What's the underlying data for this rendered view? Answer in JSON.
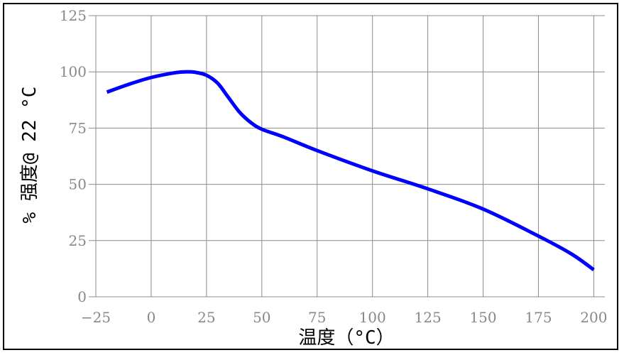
{
  "chart_data": {
    "type": "line",
    "title": "",
    "xlabel": "温度（°C）",
    "ylabel": "% 强度@ 22 °C",
    "xlim": [
      -25,
      205
    ],
    "ylim": [
      0,
      125
    ],
    "x_ticks": [
      -25,
      0,
      25,
      50,
      75,
      100,
      125,
      150,
      175,
      200
    ],
    "y_ticks": [
      0,
      25,
      50,
      75,
      100,
      125
    ],
    "x_tick_labels": [
      "−25",
      "0",
      "25",
      "50",
      "75",
      "100",
      "125",
      "150",
      "175",
      "200"
    ],
    "y_tick_labels": [
      "0",
      "25",
      "50",
      "75",
      "100",
      "125"
    ],
    "grid": true,
    "series": [
      {
        "color": "#0000ff",
        "x": [
          -20,
          -10,
          0,
          10,
          15,
          20,
          25,
          30,
          35,
          40,
          45,
          50,
          60,
          75,
          100,
          125,
          150,
          175,
          190,
          200
        ],
        "y": [
          91,
          94.5,
          97.5,
          99.5,
          100,
          99.8,
          98.5,
          95,
          88.5,
          82,
          77.5,
          74.5,
          71,
          65,
          56,
          48,
          39,
          27,
          19,
          12
        ]
      }
    ]
  }
}
